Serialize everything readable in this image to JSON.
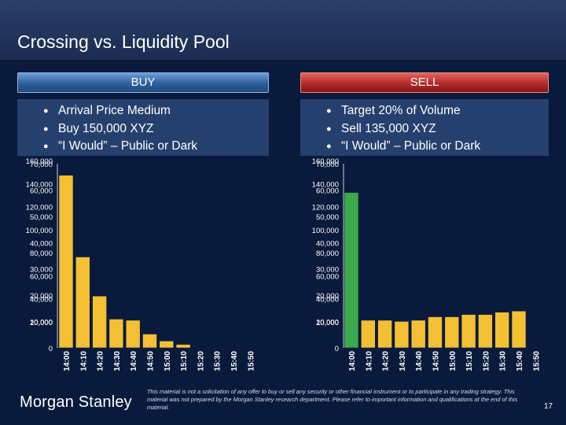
{
  "title": "Crossing vs. Liquidity Pool",
  "buy": {
    "header": "BUY",
    "bullets": [
      "Arrival Price Medium",
      "Buy 150,000 XYZ",
      "“I Would” – Public or Dark"
    ]
  },
  "sell": {
    "header": "SELL",
    "bullets": [
      "Target 20% of Volume",
      "Sell 135,000 XYZ",
      "“I Would” – Public or Dark"
    ]
  },
  "bullet_glyph": "●",
  "footer": {
    "logo": "Morgan Stanley",
    "disclaimer": "This material is not a solicitation of any offer to buy or sell any security or other financial instrument or to participate in any trading strategy. This material was not prepared by the Morgan Stanley research department. Please refer to important information and qualifications at the end of this material.",
    "page": "17"
  },
  "colors": {
    "background": "#0a1a3c",
    "bar_yellow": "#f3c033",
    "bar_green": "#3aa84b",
    "buy_header": "#2e5f9c",
    "sell_header": "#b22a2a"
  },
  "chart_data": [
    {
      "type": "bar",
      "name": "buy",
      "title": "",
      "categories": [
        "14:00",
        "14:10",
        "14:20",
        "14:30",
        "14:40",
        "14:50",
        "15:00",
        "15:10",
        "15:20",
        "15:30",
        "15:40",
        "15:50"
      ],
      "values": [
        150000,
        79000,
        45000,
        25000,
        24000,
        12000,
        6000,
        3000,
        0,
        0,
        0,
        0
      ],
      "bar_colors": [
        "yellow",
        "yellow",
        "yellow",
        "yellow",
        "yellow",
        "yellow",
        "yellow",
        "yellow",
        "yellow",
        "yellow",
        "yellow",
        "yellow"
      ],
      "ylim": [
        0,
        160000
      ],
      "y_ticks": [
        "0",
        "10,000",
        "20,000",
        "30,000",
        "40,000",
        "50,000",
        "60,000",
        "70,000"
      ],
      "y_ticks_overlay": [
        "20,000",
        "40,000",
        "60,000",
        "80,000",
        "100,000",
        "120,000",
        "140,000",
        "160,000"
      ]
    },
    {
      "type": "bar",
      "name": "sell",
      "title": "",
      "categories": [
        "14:00",
        "14:10",
        "14:20",
        "14:30",
        "14:40",
        "14:50",
        "15:00",
        "15:10",
        "15:20",
        "15:30",
        "15:40",
        "15:50"
      ],
      "values": [
        135000,
        24000,
        24000,
        23000,
        24000,
        27000,
        27000,
        29000,
        29000,
        31000,
        32000,
        0
      ],
      "bar_colors": [
        "green",
        "yellow",
        "yellow",
        "yellow",
        "yellow",
        "yellow",
        "yellow",
        "yellow",
        "yellow",
        "yellow",
        "yellow",
        "yellow"
      ],
      "ylim": [
        0,
        160000
      ],
      "y_ticks": [
        "0",
        "10,000",
        "20,000",
        "30,000",
        "40,000",
        "50,000",
        "60,000",
        "70,000"
      ],
      "y_ticks_overlay": [
        "20,000",
        "40,000",
        "60,000",
        "80,000",
        "100,000",
        "120,000",
        "140,000",
        "160,000"
      ]
    }
  ]
}
